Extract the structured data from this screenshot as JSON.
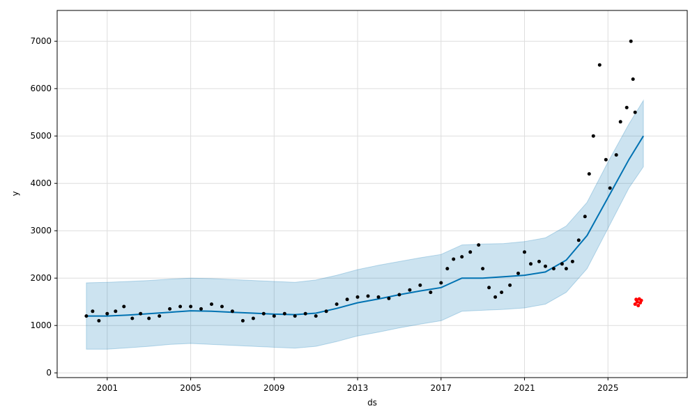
{
  "chart_data": {
    "type": "line",
    "title": "",
    "xlabel": "ds",
    "ylabel": "y",
    "grid": true,
    "legend": "none",
    "xlim": [
      1998.6,
      2028.8
    ],
    "ylim": [
      -100,
      7650
    ],
    "x_ticks": [
      {
        "value": 2001,
        "label": "2001"
      },
      {
        "value": 2005,
        "label": "2005"
      },
      {
        "value": 2009,
        "label": "2009"
      },
      {
        "value": 2013,
        "label": "2013"
      },
      {
        "value": 2017,
        "label": "2017"
      },
      {
        "value": 2021,
        "label": "2021"
      },
      {
        "value": 2025,
        "label": "2025"
      }
    ],
    "y_ticks": [
      {
        "value": 0,
        "label": "0"
      },
      {
        "value": 1000,
        "label": "1000"
      },
      {
        "value": 2000,
        "label": "2000"
      },
      {
        "value": 3000,
        "label": "3000"
      },
      {
        "value": 4000,
        "label": "4000"
      },
      {
        "value": 5000,
        "label": "5000"
      },
      {
        "value": 6000,
        "label": "6000"
      },
      {
        "value": 7000,
        "label": "7000"
      }
    ],
    "colors": {
      "forecast": "#0072b2",
      "uncertainty": "#0072b2",
      "observed": "#000000",
      "test": "#ff0000",
      "grid": "#dddddd"
    },
    "series": [
      {
        "role": "observed",
        "marker": "dot",
        "x": [
          2000.0,
          2000.3,
          2000.6,
          2001.0,
          2001.4,
          2001.8,
          2002.2,
          2002.6,
          2003.0,
          2003.5,
          2004.0,
          2004.5,
          2005.0,
          2005.5,
          2006.0,
          2006.5,
          2007.0,
          2007.5,
          2008.0,
          2008.5,
          2009.0,
          2009.5,
          2010.0,
          2010.5,
          2011.0,
          2011.5,
          2012.0,
          2012.5,
          2013.0,
          2013.5,
          2014.0,
          2014.5,
          2015.0,
          2015.5,
          2016.0,
          2016.5,
          2017.0,
          2017.3,
          2017.6,
          2018.0,
          2018.4,
          2018.8,
          2019.0,
          2019.3,
          2019.6,
          2019.9,
          2020.3,
          2020.7,
          2021.0,
          2021.3,
          2021.7,
          2022.0,
          2022.4,
          2022.8,
          2023.0,
          2023.3,
          2023.6,
          2023.9,
          2024.1,
          2024.3,
          2024.6,
          2024.9,
          2025.1,
          2025.4,
          2025.6,
          2025.9,
          2026.1,
          2026.2,
          2026.3
        ],
        "y": [
          1200,
          1300,
          1100,
          1250,
          1300,
          1400,
          1150,
          1250,
          1150,
          1200,
          1350,
          1400,
          1400,
          1350,
          1450,
          1400,
          1300,
          1100,
          1150,
          1250,
          1200,
          1250,
          1200,
          1250,
          1200,
          1300,
          1450,
          1550,
          1600,
          1620,
          1600,
          1570,
          1650,
          1750,
          1850,
          1700,
          1900,
          2200,
          2400,
          2450,
          2550,
          2700,
          2200,
          1800,
          1600,
          1700,
          1850,
          2100,
          2550,
          2300,
          2350,
          2250,
          2200,
          2300,
          2200,
          2350,
          2800,
          3300,
          4200,
          5000,
          6500,
          4500,
          3900,
          4600,
          5300,
          5600,
          7000,
          6200,
          5500
        ]
      },
      {
        "role": "test",
        "marker": "dot",
        "x": [
          2026.3,
          2026.35,
          2026.4,
          2026.45,
          2026.5,
          2026.55,
          2026.6
        ],
        "y": [
          1450,
          1550,
          1500,
          1420,
          1560,
          1480,
          1530
        ]
      },
      {
        "role": "forecast",
        "x": [
          2000.0,
          2001.0,
          2002.0,
          2003.0,
          2004.0,
          2005.0,
          2006.0,
          2007.0,
          2008.0,
          2009.0,
          2010.0,
          2011.0,
          2012.0,
          2013.0,
          2014.0,
          2015.0,
          2016.0,
          2017.0,
          2018.0,
          2019.0,
          2020.0,
          2021.0,
          2022.0,
          2023.0,
          2024.0,
          2025.0,
          2026.0,
          2026.7
        ],
        "y": [
          1200,
          1200,
          1220,
          1250,
          1280,
          1310,
          1300,
          1280,
          1260,
          1240,
          1230,
          1260,
          1360,
          1480,
          1560,
          1650,
          1730,
          1800,
          2000,
          2000,
          2030,
          2060,
          2130,
          2380,
          2900,
          3700,
          4500,
          5000
        ],
        "lower": [
          500,
          500,
          530,
          560,
          600,
          620,
          600,
          580,
          560,
          540,
          520,
          560,
          660,
          780,
          860,
          950,
          1030,
          1100,
          1300,
          1320,
          1340,
          1370,
          1450,
          1700,
          2200,
          3050,
          3900,
          4350
        ],
        "upper": [
          1900,
          1910,
          1930,
          1950,
          1980,
          2000,
          1990,
          1970,
          1950,
          1930,
          1910,
          1960,
          2060,
          2180,
          2270,
          2350,
          2430,
          2500,
          2700,
          2720,
          2730,
          2770,
          2850,
          3100,
          3600,
          4450,
          5250,
          5750
        ]
      }
    ]
  }
}
